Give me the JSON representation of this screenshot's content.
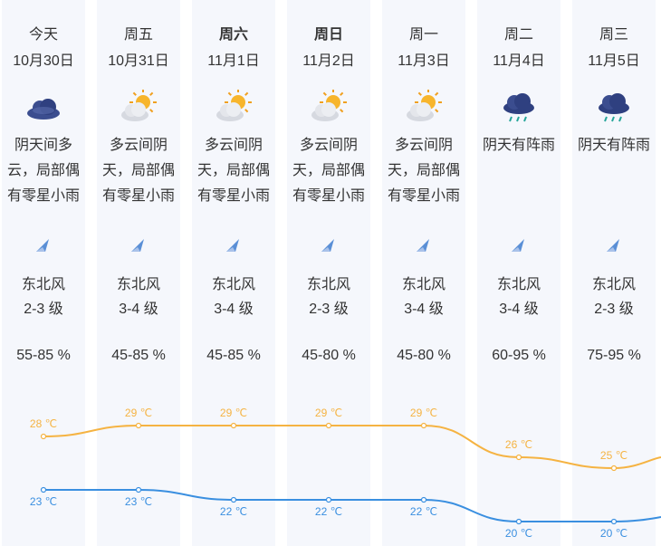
{
  "days": [
    {
      "day": "今天",
      "date": "10月30日",
      "icon": "overcast-cloud-icon",
      "desc": "阴天间多云，局部偶有零星小雨",
      "wind": "东北风",
      "level": "2-3 级",
      "humidity": "55-85 %",
      "high": "28 ℃",
      "low": "23 ℃",
      "bold": false
    },
    {
      "day": "周五",
      "date": "10月31日",
      "icon": "partly-cloudy-icon",
      "desc": "多云间阴天，局部偶有零星小雨",
      "wind": "东北风",
      "level": "3-4 级",
      "humidity": "45-85 %",
      "high": "29 ℃",
      "low": "23 ℃",
      "bold": false
    },
    {
      "day": "周六",
      "date": "11月1日",
      "icon": "partly-cloudy-icon",
      "desc": "多云间阴天，局部偶有零星小雨",
      "wind": "东北风",
      "level": "3-4 级",
      "humidity": "45-85 %",
      "high": "29 ℃",
      "low": "22 ℃",
      "bold": true
    },
    {
      "day": "周日",
      "date": "11月2日",
      "icon": "partly-cloudy-icon",
      "desc": "多云间阴天，局部偶有零星小雨",
      "wind": "东北风",
      "level": "2-3 级",
      "humidity": "45-80 %",
      "high": "29 ℃",
      "low": "22 ℃",
      "bold": true
    },
    {
      "day": "周一",
      "date": "11月3日",
      "icon": "partly-cloudy-icon",
      "desc": "多云间阴天，局部偶有零星小雨",
      "wind": "东北风",
      "level": "3-4 级",
      "humidity": "45-80 %",
      "high": "29 ℃",
      "low": "22 ℃",
      "bold": false
    },
    {
      "day": "周二",
      "date": "11月4日",
      "icon": "rain-shower-icon",
      "desc": "阴天有阵雨",
      "wind": "东北风",
      "level": "3-4 级",
      "humidity": "60-95 %",
      "high": "26 ℃",
      "low": "20 ℃",
      "bold": false
    },
    {
      "day": "周三",
      "date": "11月5日",
      "icon": "rain-shower-icon",
      "desc": "阴天有阵雨",
      "wind": "东北风",
      "level": "2-3 级",
      "humidity": "75-95 %",
      "high": "25 ℃",
      "low": "20 ℃",
      "bold": false
    }
  ],
  "colors": {
    "high_line": "#f5b342",
    "low_line": "#3a8fe0",
    "column_bg": "#f5f7fc",
    "wind_arrow": "#5a8fd6"
  }
}
